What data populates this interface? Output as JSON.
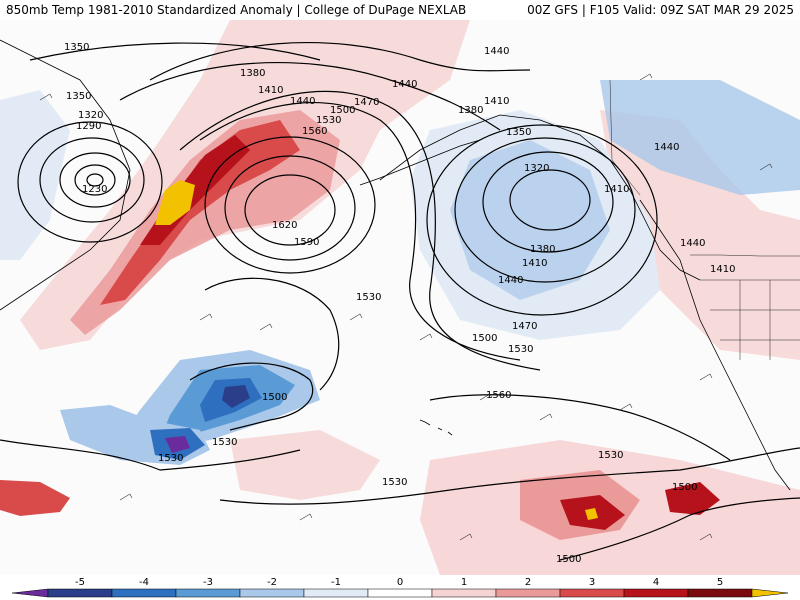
{
  "header": {
    "title_left": "850mb Temp 1981-2010 Standardized Anomaly | College of DuPage NEXLAB",
    "title_right": "00Z GFS | F105 Valid: 09Z SAT MAR 29 2025"
  },
  "colorbar": {
    "ticks": [
      "-5",
      "-4",
      "-3",
      "-2",
      "-1",
      "0",
      "1",
      "2",
      "3",
      "4",
      "5"
    ],
    "colors": [
      "#6a2c9c",
      "#2b3e8a",
      "#2e6fbf",
      "#5b9bd5",
      "#a9c8ea",
      "#e2ebf5",
      "#ffffff",
      "#f6d3d3",
      "#eb9a9a",
      "#d94a4a",
      "#b5121b",
      "#7a0c10",
      "#f2c200"
    ]
  },
  "contours": {
    "labels": [
      "1350",
      "1350",
      "1320",
      "1290",
      "1230",
      "1380",
      "1410",
      "1440",
      "1470",
      "1500",
      "1530",
      "1560",
      "1620",
      "1590",
      "1440",
      "1440",
      "1410",
      "1380",
      "1350",
      "1320",
      "1380",
      "1410",
      "1440",
      "1470",
      "1500",
      "1530",
      "1530",
      "1410",
      "1440",
      "1440",
      "1410",
      "1500",
      "1530",
      "1560",
      "1530",
      "1530",
      "1530",
      "1500",
      "1500"
    ]
  },
  "colors": {
    "positive": "#d94a4a",
    "strong_positive": "#b5121b",
    "extreme_positive": "#f2c200",
    "negative": "#a9c8ea",
    "strong_negative": "#2e6fbf",
    "extreme_negative": "#6a2c9c"
  }
}
